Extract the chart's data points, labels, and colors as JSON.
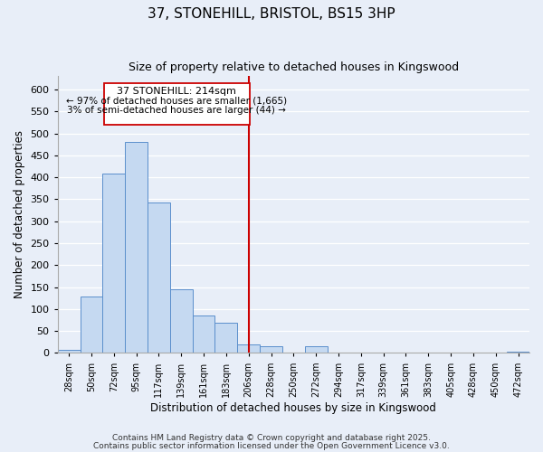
{
  "title": "37, STONEHILL, BRISTOL, BS15 3HP",
  "subtitle": "Size of property relative to detached houses in Kingswood",
  "xlabel": "Distribution of detached houses by size in Kingswood",
  "ylabel": "Number of detached properties",
  "bar_color": "#c5d9f1",
  "bar_edge_color": "#5b8fcc",
  "background_color": "#e8eef8",
  "annotation_border_color": "#cc0000",
  "vline_color": "#cc0000",
  "annotation_title": "37 STONEHILL: 214sqm",
  "annotation_line1": "← 97% of detached houses are smaller (1,665)",
  "annotation_line2": "3% of semi-detached houses are larger (44) →",
  "footer_line1": "Contains HM Land Registry data © Crown copyright and database right 2025.",
  "footer_line2": "Contains public sector information licensed under the Open Government Licence v3.0.",
  "categories": [
    "28sqm",
    "50sqm",
    "72sqm",
    "95sqm",
    "117sqm",
    "139sqm",
    "161sqm",
    "183sqm",
    "206sqm",
    "228sqm",
    "250sqm",
    "272sqm",
    "294sqm",
    "317sqm",
    "339sqm",
    "361sqm",
    "383sqm",
    "405sqm",
    "428sqm",
    "450sqm",
    "472sqm"
  ],
  "values": [
    8,
    128,
    408,
    480,
    343,
    145,
    85,
    68,
    20,
    15,
    0,
    15,
    0,
    0,
    0,
    0,
    0,
    0,
    0,
    0,
    2
  ],
  "ylim": [
    0,
    630
  ],
  "yticks": [
    0,
    50,
    100,
    150,
    200,
    250,
    300,
    350,
    400,
    450,
    500,
    550,
    600
  ],
  "figsize": [
    6.0,
    5.0
  ],
  "dpi": 100
}
